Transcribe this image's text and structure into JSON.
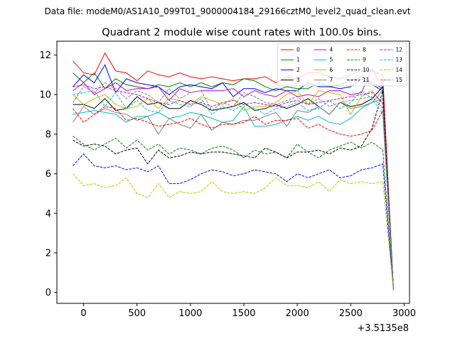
{
  "header": {
    "data_file": "Data file: modeM0/AS1A10_099T01_9000004184_29166cztM0_level2_quad_clean.evt"
  },
  "chart_data": {
    "type": "line",
    "title": "Quadrant 2 module wise count rates with 100.0s bins.",
    "xlabel": "",
    "ylabel": "",
    "x_offset_label": "+3.5135e8",
    "xlim": [
      -250,
      3050
    ],
    "ylim": [
      -0.55,
      12.7
    ],
    "xticks": [
      0,
      500,
      1000,
      1500,
      2000,
      2500,
      3000
    ],
    "xtick_labels": [
      "0",
      "500",
      "1000",
      "1500",
      "2000",
      "2500",
      "3000"
    ],
    "yticks": [
      0,
      2,
      4,
      6,
      8,
      10,
      12
    ],
    "ytick_labels": [
      "0",
      "2",
      "4",
      "6",
      "8",
      "10",
      "12"
    ],
    "grid": false,
    "legend_position": "top-right",
    "x": [
      -100,
      0,
      100,
      200,
      300,
      400,
      500,
      600,
      700,
      800,
      900,
      1000,
      1100,
      1200,
      1300,
      1400,
      1500,
      1600,
      1700,
      1800,
      1900,
      2000,
      2100,
      2200,
      2300,
      2400,
      2500,
      2600,
      2700,
      2800,
      2900
    ],
    "series": [
      {
        "name": "0",
        "color": "#ff0000",
        "dash": "solid",
        "values": [
          11.7,
          11.1,
          11.0,
          12.1,
          11.2,
          11.1,
          10.7,
          11.2,
          11.0,
          10.9,
          11.1,
          10.9,
          10.8,
          10.9,
          10.8,
          10.7,
          10.8,
          10.8,
          10.9,
          10.6,
          10.9,
          10.8,
          11.1,
          11.1,
          10.9,
          10.8,
          11.0,
          11.2,
          11.2,
          11.0,
          0.1
        ]
      },
      {
        "name": "1",
        "color": "#008000",
        "dash": "solid",
        "values": [
          11.1,
          10.6,
          11.1,
          10.3,
          10.8,
          10.5,
          10.4,
          10.3,
          10.5,
          10.4,
          10.6,
          10.4,
          10.6,
          10.4,
          10.6,
          10.5,
          10.8,
          10.7,
          10.4,
          10.2,
          10.4,
          10.3,
          10.3,
          10.6,
          10.4,
          10.5,
          10.7,
          10.9,
          10.6,
          10.3,
          0.1
        ]
      },
      {
        "name": "2",
        "color": "#0000ff",
        "dash": "solid",
        "values": [
          10.4,
          11.0,
          10.6,
          11.5,
          10.1,
          10.8,
          10.6,
          10.5,
          10.4,
          10.0,
          10.4,
          10.5,
          10.4,
          10.3,
          10.6,
          9.9,
          10.3,
          10.3,
          10.1,
          10.3,
          10.2,
          10.2,
          10.6,
          10.4,
          10.4,
          10.3,
          10.4,
          10.8,
          10.5,
          10.2,
          0.1
        ]
      },
      {
        "name": "3",
        "color": "#000000",
        "dash": "solid",
        "values": [
          9.5,
          9.5,
          9.3,
          9.8,
          9.2,
          9.3,
          9.9,
          9.5,
          9.6,
          9.3,
          9.3,
          9.7,
          9.5,
          9.2,
          9.3,
          9.4,
          9.6,
          9.2,
          9.3,
          9.5,
          9.3,
          9.5,
          9.8,
          9.4,
          9.0,
          9.6,
          9.4,
          9.5,
          9.8,
          10.4,
          0.1
        ]
      },
      {
        "name": "4",
        "color": "#cc00cc",
        "dash": "solid",
        "values": [
          10.2,
          10.6,
          10.0,
          10.3,
          10.6,
          10.2,
          10.3,
          10.3,
          10.4,
          9.7,
          10.3,
          10.1,
          10.2,
          10.2,
          10.2,
          10.3,
          9.9,
          10.2,
          10.0,
          9.9,
          10.2,
          9.9,
          10.0,
          9.9,
          10.2,
          10.2,
          10.0,
          10.1,
          11.3,
          10.3,
          0.1
        ]
      },
      {
        "name": "5",
        "color": "#00bfbf",
        "dash": "solid",
        "values": [
          9.0,
          9.1,
          9.2,
          9.1,
          9.0,
          8.6,
          8.9,
          8.9,
          9.1,
          8.8,
          8.9,
          9.1,
          9.0,
          8.8,
          8.6,
          8.7,
          9.4,
          8.4,
          8.4,
          8.5,
          8.7,
          8.9,
          8.7,
          8.9,
          8.6,
          8.5,
          8.8,
          9.3,
          9.6,
          9.8,
          0.1
        ]
      },
      {
        "name": "6",
        "color": "#bfbf00",
        "dash": "solid",
        "values": [
          10.0,
          9.5,
          9.8,
          10.0,
          9.5,
          9.3,
          9.4,
          9.8,
          9.3,
          9.8,
          9.7,
          9.5,
          9.9,
          9.7,
          9.5,
          9.8,
          9.2,
          9.4,
          9.4,
          9.6,
          10.0,
          10.2,
          9.5,
          10.2,
          10.1,
          10.0,
          9.0,
          9.9,
          10.2,
          9.5,
          0.1
        ]
      },
      {
        "name": "7",
        "color": "#808080",
        "dash": "solid",
        "values": [
          8.6,
          9.4,
          9.0,
          9.3,
          9.1,
          9.0,
          8.7,
          8.9,
          8.0,
          8.8,
          8.5,
          8.3,
          9.0,
          8.2,
          8.6,
          8.5,
          8.7,
          8.7,
          8.9,
          9.1,
          8.4,
          9.2,
          9.1,
          9.4,
          9.0,
          9.6,
          9.3,
          9.4,
          9.6,
          10.2,
          0.1
        ]
      },
      {
        "name": "8",
        "color": "#ff0000",
        "dash": "dash",
        "values": [
          9.3,
          8.6,
          9.0,
          9.4,
          9.3,
          8.7,
          8.8,
          8.6,
          8.4,
          8.5,
          8.6,
          8.8,
          8.5,
          8.3,
          8.5,
          8.5,
          8.6,
          8.9,
          8.5,
          8.7,
          8.7,
          8.8,
          8.3,
          8.5,
          8.2,
          8.0,
          7.9,
          8.0,
          8.2,
          9.2,
          0.1
        ]
      },
      {
        "name": "9",
        "color": "#008000",
        "dash": "dash",
        "values": [
          7.9,
          7.5,
          7.2,
          7.5,
          7.8,
          7.3,
          7.7,
          7.2,
          7.5,
          7.0,
          7.3,
          7.2,
          7.0,
          7.3,
          7.4,
          7.2,
          6.8,
          7.2,
          7.0,
          7.1,
          6.8,
          7.5,
          7.1,
          6.8,
          7.2,
          7.4,
          7.6,
          7.3,
          7.6,
          7.2,
          0.1
        ]
      },
      {
        "name": "10",
        "color": "#0000ff",
        "dash": "dash",
        "values": [
          6.4,
          7.0,
          6.4,
          6.3,
          6.4,
          6.2,
          6.3,
          6.1,
          6.4,
          5.5,
          5.5,
          5.7,
          6.0,
          6.2,
          6.1,
          5.9,
          6.0,
          6.2,
          6.1,
          6.0,
          5.6,
          6.0,
          5.8,
          6.0,
          6.2,
          5.8,
          5.9,
          6.2,
          6.3,
          6.5,
          0.1
        ]
      },
      {
        "name": "11",
        "color": "#000000",
        "dash": "dash",
        "values": [
          7.7,
          7.4,
          7.5,
          7.4,
          7.0,
          7.2,
          7.3,
          6.5,
          7.2,
          6.8,
          6.9,
          7.1,
          7.0,
          7.1,
          7.1,
          7.0,
          6.9,
          6.8,
          7.3,
          7.1,
          6.8,
          7.1,
          7.1,
          7.2,
          7.0,
          7.3,
          7.2,
          7.4,
          8.3,
          10.2,
          0.1
        ]
      },
      {
        "name": "12",
        "color": "#cc00cc",
        "dash": "dash",
        "values": [
          10.4,
          10.5,
          10.3,
          10.4,
          10.2,
          10.1,
          10.0,
          9.8,
          9.6,
          9.5,
          9.7,
          9.5,
          9.6,
          9.4,
          9.6,
          9.7,
          9.5,
          9.6,
          9.5,
          9.4,
          9.6,
          9.7,
          9.5,
          9.6,
          9.7,
          9.8,
          9.9,
          10.0,
          10.1,
          9.6,
          0.1
        ]
      },
      {
        "name": "13",
        "color": "#00bfbf",
        "dash": "dash",
        "values": [
          10.0,
          10.1,
          10.2,
          9.4,
          10.1,
          9.3,
          9.7,
          9.2,
          9.1,
          9.7,
          9.5,
          9.4,
          9.8,
          9.0,
          9.4,
          9.2,
          9.5,
          9.3,
          9.0,
          9.3,
          9.4,
          9.6,
          9.2,
          9.3,
          9.7,
          9.3,
          9.6,
          10.2,
          9.8,
          9.0,
          0.1
        ]
      },
      {
        "name": "14",
        "color": "#bfbf00",
        "dash": "dash",
        "values": [
          6.0,
          5.4,
          5.5,
          5.3,
          5.4,
          5.8,
          5.0,
          4.8,
          5.5,
          4.8,
          5.1,
          5.0,
          5.1,
          5.6,
          5.1,
          5.0,
          5.1,
          5.0,
          5.3,
          5.8,
          5.4,
          5.4,
          5.3,
          5.6,
          5.1,
          5.7,
          5.5,
          5.6,
          5.5,
          5.6,
          0.1
        ]
      },
      {
        "name": "15",
        "color": "#808080",
        "dash": "dash",
        "values": [
          9.6,
          10.4,
          10.1,
          10.6,
          10.3,
          9.8,
          10.2,
          10.0,
          9.6,
          10.3,
          9.8,
          10.1,
          10.2,
          9.2,
          9.6,
          9.4,
          10.1,
          9.9,
          9.6,
          9.5,
          9.7,
          9.9,
          9.5,
          9.8,
          9.4,
          9.6,
          9.7,
          9.8,
          9.9,
          9.3,
          0.1
        ]
      }
    ]
  }
}
